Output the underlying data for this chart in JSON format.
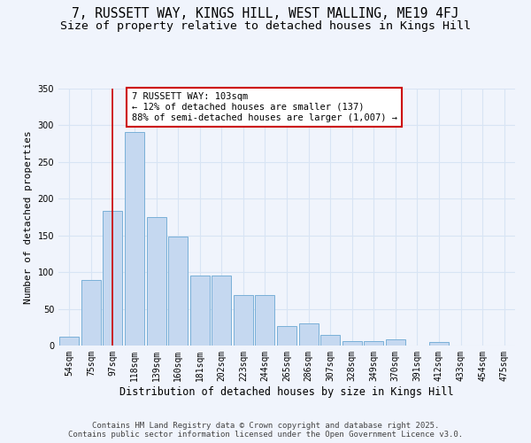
{
  "title": "7, RUSSETT WAY, KINGS HILL, WEST MALLING, ME19 4FJ",
  "subtitle": "Size of property relative to detached houses in Kings Hill",
  "xlabel": "Distribution of detached houses by size in Kings Hill",
  "ylabel": "Number of detached properties",
  "categories": [
    "54sqm",
    "75sqm",
    "97sqm",
    "118sqm",
    "139sqm",
    "160sqm",
    "181sqm",
    "202sqm",
    "223sqm",
    "244sqm",
    "265sqm",
    "286sqm",
    "307sqm",
    "328sqm",
    "349sqm",
    "370sqm",
    "391sqm",
    "412sqm",
    "433sqm",
    "454sqm",
    "475sqm"
  ],
  "values": [
    12,
    89,
    183,
    291,
    175,
    148,
    95,
    95,
    69,
    69,
    27,
    30,
    14,
    6,
    6,
    9,
    0,
    5,
    0,
    0,
    0
  ],
  "bar_color": "#c5d8f0",
  "bar_edge_color": "#7ab0d8",
  "background_color": "#f0f4fc",
  "grid_color": "#d8e4f4",
  "vline_x": 2,
  "vline_color": "#cc0000",
  "annotation_text": "7 RUSSETT WAY: 103sqm\n← 12% of detached houses are smaller (137)\n88% of semi-detached houses are larger (1,007) →",
  "annotation_box_facecolor": "#ffffff",
  "annotation_box_edgecolor": "#cc0000",
  "footer": "Contains HM Land Registry data © Crown copyright and database right 2025.\nContains public sector information licensed under the Open Government Licence v3.0.",
  "ylim": [
    0,
    350
  ],
  "yticks": [
    0,
    50,
    100,
    150,
    200,
    250,
    300,
    350
  ],
  "title_fontsize": 10.5,
  "subtitle_fontsize": 9.5,
  "ylabel_fontsize": 8,
  "xlabel_fontsize": 8.5,
  "tick_fontsize": 7,
  "annotation_fontsize": 7.5,
  "footer_fontsize": 6.5
}
